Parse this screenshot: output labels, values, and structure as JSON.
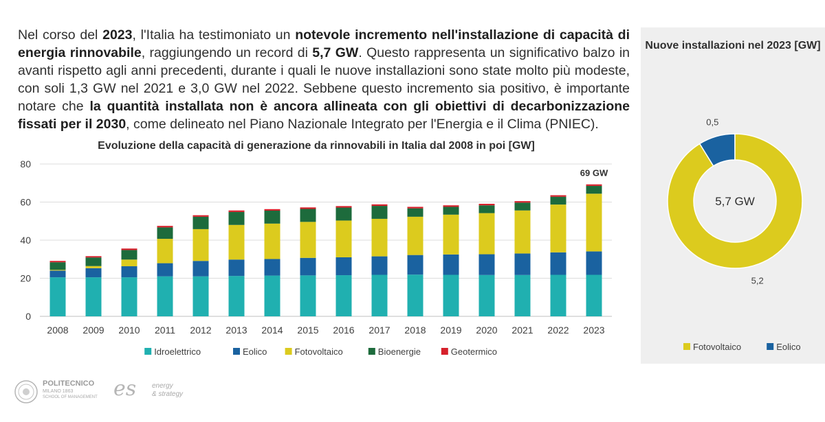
{
  "intro": {
    "s1": "Nel corso del ",
    "b1": "2023",
    "s2": ", l'Italia ha testimoniato un ",
    "b2": "notevole incremento nell'installazione di capacità di energia rinnovabile",
    "s3": ", raggiungendo un record di ",
    "b3": "5,7 GW",
    "s4": ". Questo rappresenta un significativo balzo in avanti rispetto agli anni precedenti, durante i quali le nuove installazioni sono state molto più modeste, con soli 1,3 GW nel 2021 e 3,0 GW nel 2022. Sebbene questo incremento sia positivo, è importante notare che ",
    "b4": "la quantità installata non è ancora allineata con gli obiettivi di decarbonizzazione fissati per il 2030",
    "s5": ", come delineato nel Piano Nazionale Integrato per l'Energia e il Clima (PNIEC)."
  },
  "chart_data": [
    {
      "type": "bar",
      "stacked": true,
      "title": "Evoluzione della capacità di generazione da rinnovabili in Italia dal 2008 in poi [GW]",
      "categories": [
        "2008",
        "2009",
        "2010",
        "2011",
        "2012",
        "2013",
        "2014",
        "2015",
        "2016",
        "2017",
        "2018",
        "2019",
        "2020",
        "2021",
        "2022",
        "2023"
      ],
      "ylim": [
        0,
        80
      ],
      "yticks": [
        0,
        20,
        40,
        60,
        80
      ],
      "grid": true,
      "legend_position": "bottom",
      "annotation": {
        "category": "2023",
        "text": "69 GW"
      },
      "series": [
        {
          "name": "Idroelettrico",
          "color": "#20b0b0",
          "values": [
            20.5,
            20.5,
            20.5,
            21,
            21,
            21.2,
            21.4,
            21.5,
            21.6,
            21.8,
            21.9,
            21.8,
            21.7,
            21.7,
            21.8,
            21.8
          ]
        },
        {
          "name": "Eolico",
          "color": "#1a62a0",
          "values": [
            3.5,
            4.8,
            5.8,
            6.9,
            8.1,
            8.6,
            8.7,
            9.2,
            9.4,
            9.7,
            10.3,
            10.7,
            10.9,
            11.3,
            11.8,
            12.3
          ]
        },
        {
          "name": "Fotovoltaico",
          "color": "#dccb1e",
          "values": [
            0.4,
            1.1,
            3.5,
            12.8,
            16.7,
            18.2,
            18.6,
            18.9,
            19.3,
            19.7,
            20.1,
            20.9,
            21.6,
            22.6,
            25.1,
            30.3
          ]
        },
        {
          "name": "Bioenergie",
          "color": "#1d6b3c",
          "values": [
            4,
            4.5,
            5,
            6,
            6.5,
            6.8,
            6.8,
            6.8,
            6.8,
            6.8,
            4.4,
            4.1,
            4.1,
            4.1,
            4.1,
            4.1
          ]
        },
        {
          "name": "Geotermico",
          "color": "#d6202b",
          "values": [
            0.7,
            0.7,
            0.8,
            0.8,
            0.8,
            0.8,
            0.8,
            0.8,
            0.8,
            0.8,
            0.8,
            0.8,
            0.8,
            0.8,
            0.8,
            0.8
          ]
        }
      ]
    },
    {
      "type": "pie",
      "donut": true,
      "title": "Nuove installazioni nel 2023 [GW]",
      "center_label": "5,7 GW",
      "legend_position": "bottom",
      "categories": [
        "Fotovoltaico",
        "Eolico"
      ],
      "values": [
        5.2,
        0.5
      ],
      "labels": [
        "5,2",
        "0,5"
      ],
      "colors": [
        "#dccb1e",
        "#1a62a0"
      ]
    }
  ],
  "logos": {
    "poli_name": "POLITECNICO",
    "poli_sub": "MILANO 1863",
    "poli_sub2": "SCHOOL OF MANAGEMENT",
    "es_mark": "es",
    "es_line1": "energy",
    "es_line2": "& strategy"
  }
}
